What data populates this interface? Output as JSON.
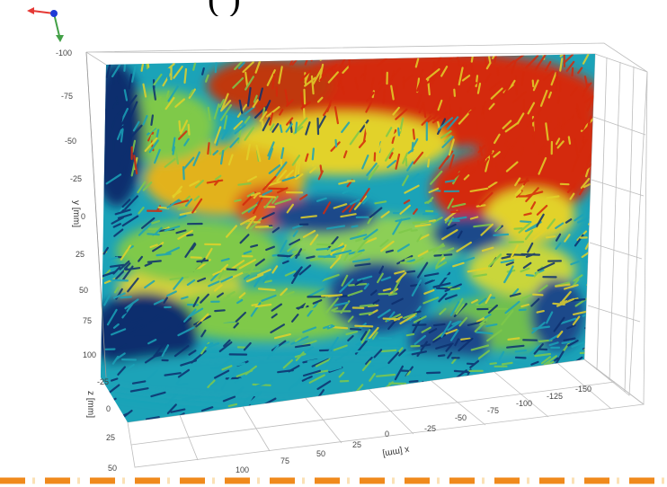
{
  "caption_fragment": "(                 )",
  "orientation_gizmo": {
    "axes": [
      "x-red",
      "y-green",
      "z-blue"
    ]
  },
  "y_axis": {
    "label": "y [mm]",
    "ticks": [
      "-100",
      "-75",
      "-50",
      "-25",
      "0",
      "25",
      "50",
      "75",
      "100"
    ]
  },
  "z_axis": {
    "label": "z [mm]",
    "ticks": [
      "-25",
      "0",
      "25",
      "50"
    ]
  },
  "x_axis": {
    "label": "x [mm]",
    "ticks": [
      "100",
      "75",
      "50",
      "25",
      "0",
      "-25",
      "-50",
      "-75",
      "-100",
      "-125",
      "-150"
    ]
  },
  "colors": {
    "slow": "#0d2f6e",
    "mid_low": "#1ba3b8",
    "mid": "#7fc94a",
    "mid_high": "#e2d22a",
    "fast": "#d42a0c",
    "dash": "#f08a1c"
  },
  "footer": {
    "style": "dashed-orange-line"
  }
}
